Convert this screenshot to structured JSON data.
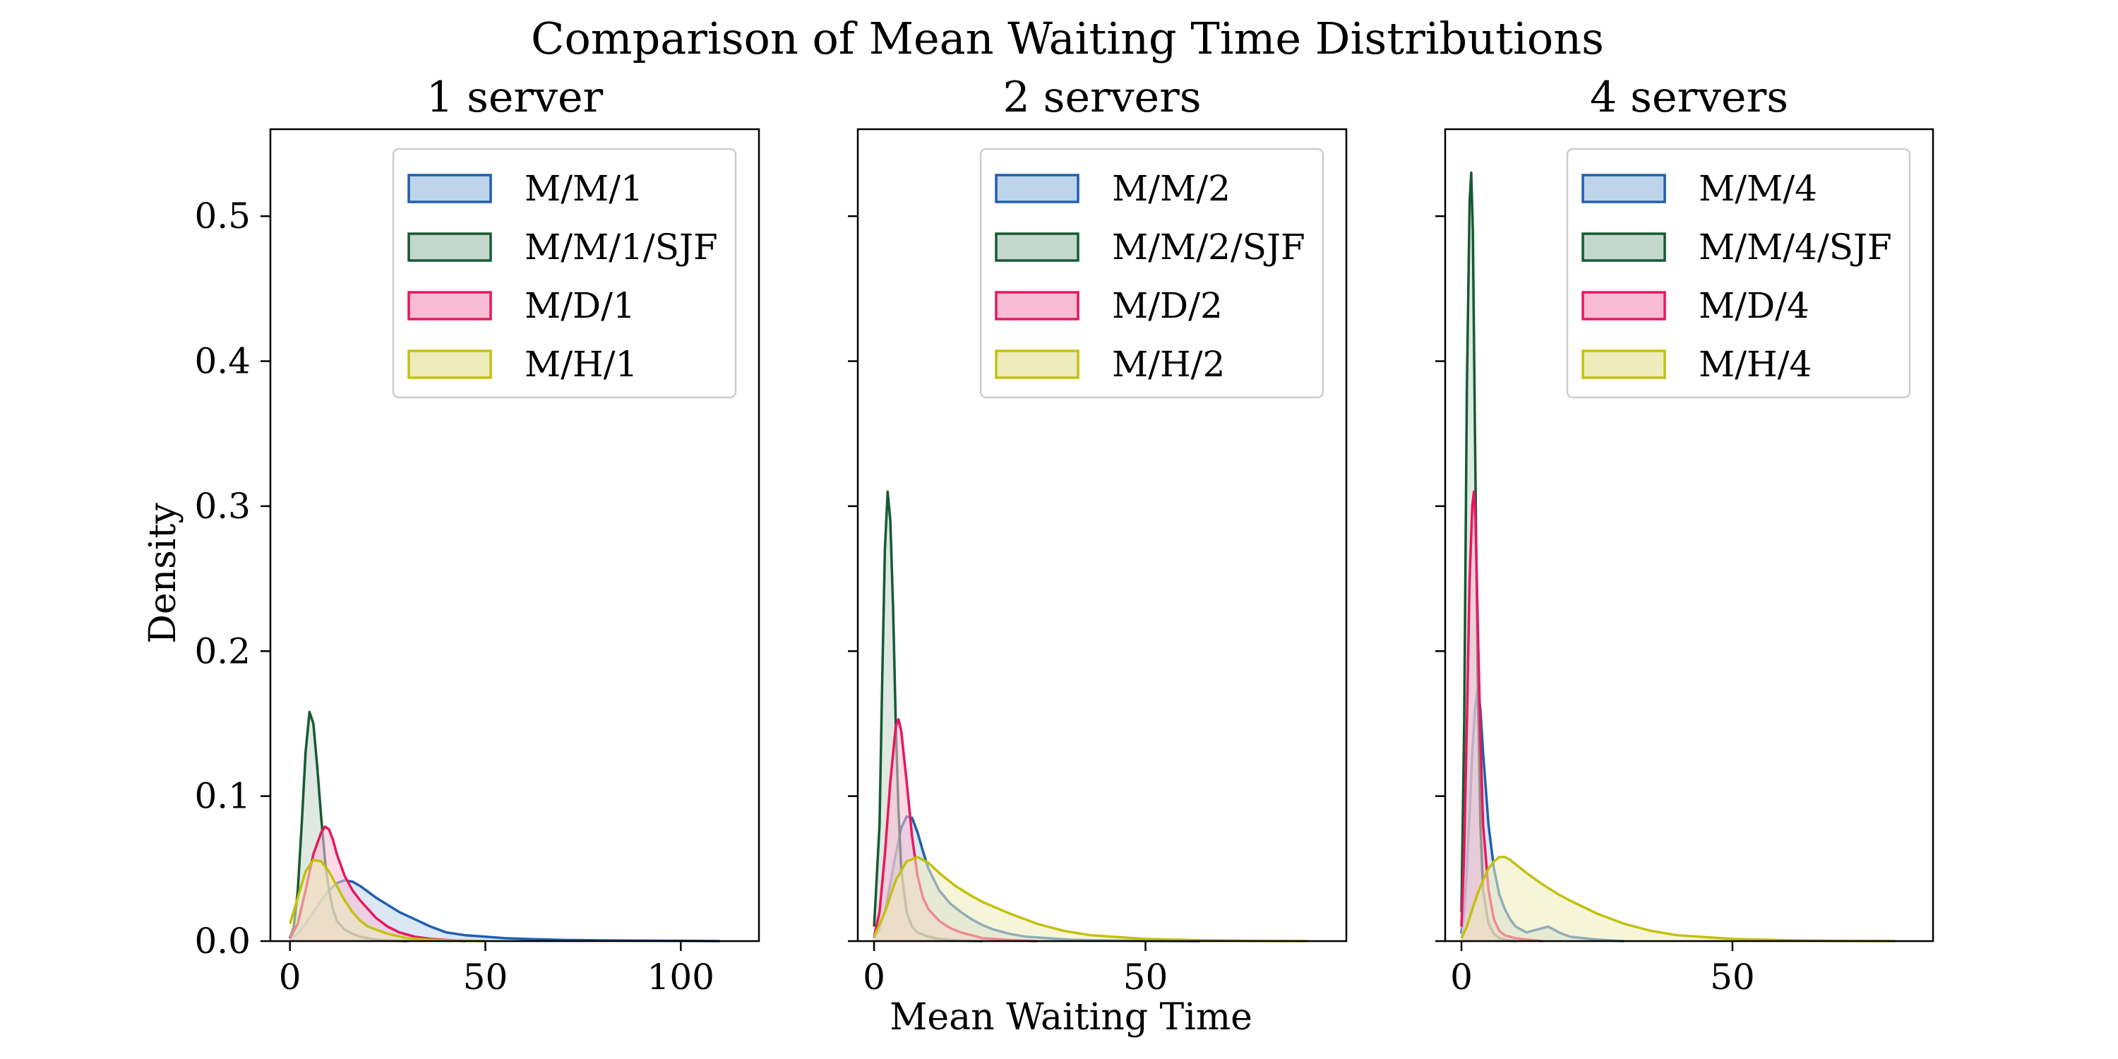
{
  "figure": {
    "title": "Comparison of Mean Waiting Time Distributions",
    "xlabel": "Mean Waiting Time",
    "ylabel": "Density"
  },
  "chart_data": [
    {
      "type": "area",
      "title": "1 server",
      "xlabel": "Mean Waiting Time",
      "ylabel": "Density",
      "xlim": [
        -5,
        120
      ],
      "ylim": [
        0,
        0.56
      ],
      "xticks": [
        0,
        50,
        100
      ],
      "yticks": [
        0.0,
        0.1,
        0.2,
        0.3,
        0.4,
        0.5
      ],
      "legend_position": "upper right",
      "grid": false,
      "series": [
        {
          "name": "M/M/1",
          "color": "#1f5fad",
          "fill": "#bdd4ea",
          "x": [
            0,
            2,
            4,
            6,
            8,
            10,
            12,
            14,
            16,
            18,
            20,
            22,
            25,
            28,
            32,
            36,
            40,
            45,
            50,
            55,
            60,
            70,
            80,
            90,
            100,
            110
          ],
          "y": [
            0.001,
            0.005,
            0.012,
            0.02,
            0.028,
            0.035,
            0.04,
            0.042,
            0.041,
            0.038,
            0.034,
            0.03,
            0.025,
            0.02,
            0.015,
            0.01,
            0.006,
            0.004,
            0.003,
            0.002,
            0.0015,
            0.0008,
            0.0005,
            0.0003,
            0.0002,
            0.0
          ]
        },
        {
          "name": "M/M/1/SJF",
          "color": "#165a32",
          "fill": "#c3d7cb",
          "x": [
            0,
            1,
            2,
            3,
            4,
            5,
            6,
            7,
            8,
            9,
            10,
            11,
            12,
            14,
            16,
            18,
            20,
            22,
            25,
            30
          ],
          "y": [
            0.002,
            0.01,
            0.035,
            0.08,
            0.13,
            0.158,
            0.15,
            0.12,
            0.085,
            0.055,
            0.035,
            0.022,
            0.014,
            0.008,
            0.005,
            0.003,
            0.002,
            0.001,
            0.0005,
            0.0
          ]
        },
        {
          "name": "M/D/1",
          "color": "#e8175d",
          "fill": "#f9bcd4",
          "x": [
            0,
            2,
            4,
            6,
            8,
            9,
            10,
            11,
            12,
            14,
            16,
            18,
            20,
            22,
            25,
            28,
            32,
            36,
            40,
            45
          ],
          "y": [
            0.002,
            0.012,
            0.035,
            0.06,
            0.075,
            0.079,
            0.077,
            0.07,
            0.06,
            0.045,
            0.035,
            0.028,
            0.022,
            0.016,
            0.01,
            0.006,
            0.003,
            0.0015,
            0.0008,
            0.0
          ]
        },
        {
          "name": "M/H/1",
          "color": "#c2c10e",
          "fill": "#efecbc",
          "x": [
            0,
            2,
            4,
            6,
            8,
            10,
            12,
            14,
            16,
            18,
            20,
            25,
            30,
            35,
            40,
            50
          ],
          "y": [
            0.012,
            0.03,
            0.048,
            0.056,
            0.055,
            0.048,
            0.038,
            0.028,
            0.02,
            0.014,
            0.01,
            0.005,
            0.002,
            0.001,
            0.0005,
            0.0
          ]
        }
      ]
    },
    {
      "type": "area",
      "title": "2 servers",
      "xlabel": "Mean Waiting Time",
      "ylabel": "Density",
      "xlim": [
        -3,
        87
      ],
      "ylim": [
        0,
        0.56
      ],
      "xticks": [
        0,
        50
      ],
      "yticks": [
        0.0,
        0.1,
        0.2,
        0.3,
        0.4,
        0.5
      ],
      "legend_position": "upper right",
      "grid": false,
      "series": [
        {
          "name": "M/M/2",
          "color": "#1f5fad",
          "fill": "#bdd4ea",
          "x": [
            0,
            1,
            2,
            3,
            4,
            5,
            6,
            7,
            8,
            9,
            10,
            12,
            14,
            16,
            18,
            20,
            22,
            25,
            28,
            32,
            36,
            40,
            50,
            60
          ],
          "y": [
            0.002,
            0.008,
            0.02,
            0.04,
            0.06,
            0.078,
            0.086,
            0.085,
            0.075,
            0.062,
            0.05,
            0.035,
            0.026,
            0.02,
            0.015,
            0.011,
            0.008,
            0.005,
            0.003,
            0.002,
            0.001,
            0.0006,
            0.0002,
            0.0
          ]
        },
        {
          "name": "M/M/2/SJF",
          "color": "#165a32",
          "fill": "#c3d7cb",
          "x": [
            0,
            1,
            1.5,
            2,
            2.5,
            3,
            3.5,
            4,
            4.5,
            5,
            6,
            7,
            8,
            10,
            12,
            15,
            20
          ],
          "y": [
            0.01,
            0.08,
            0.18,
            0.27,
            0.31,
            0.29,
            0.23,
            0.15,
            0.09,
            0.05,
            0.02,
            0.01,
            0.006,
            0.003,
            0.0015,
            0.0005,
            0.0
          ]
        },
        {
          "name": "M/D/2",
          "color": "#e8175d",
          "fill": "#f9bcd4",
          "x": [
            0,
            1,
            2,
            3,
            4,
            4.5,
            5,
            6,
            7,
            8,
            9,
            10,
            12,
            14,
            16,
            18,
            20,
            25,
            30
          ],
          "y": [
            0.003,
            0.02,
            0.06,
            0.11,
            0.148,
            0.153,
            0.145,
            0.11,
            0.072,
            0.045,
            0.03,
            0.022,
            0.014,
            0.009,
            0.006,
            0.004,
            0.002,
            0.0008,
            0.0
          ]
        },
        {
          "name": "M/H/2",
          "color": "#c2c10e",
          "fill": "#efecbc",
          "x": [
            0,
            2,
            4,
            6,
            8,
            10,
            12,
            15,
            18,
            20,
            25,
            30,
            35,
            40,
            50,
            60,
            70,
            80
          ],
          "y": [
            0.003,
            0.02,
            0.042,
            0.055,
            0.058,
            0.054,
            0.047,
            0.038,
            0.031,
            0.027,
            0.019,
            0.012,
            0.007,
            0.004,
            0.0015,
            0.0006,
            0.0002,
            0.0
          ]
        }
      ]
    },
    {
      "type": "area",
      "title": "4 servers",
      "xlabel": "Mean Waiting Time",
      "ylabel": "Density",
      "xlim": [
        -3,
        87
      ],
      "ylim": [
        0,
        0.56
      ],
      "xticks": [
        0,
        50
      ],
      "yticks": [
        0.0,
        0.1,
        0.2,
        0.3,
        0.4,
        0.5
      ],
      "legend_position": "upper right",
      "grid": false,
      "series": [
        {
          "name": "M/M/4",
          "color": "#1f5fad",
          "fill": "#bdd4ea",
          "x": [
            0,
            0.5,
            1,
            1.5,
            2,
            2.5,
            3,
            3.5,
            4,
            5,
            6,
            7,
            8,
            9,
            10,
            12,
            14,
            16,
            18,
            20,
            25,
            30
          ],
          "y": [
            0.005,
            0.02,
            0.05,
            0.09,
            0.13,
            0.16,
            0.175,
            0.16,
            0.13,
            0.08,
            0.05,
            0.032,
            0.022,
            0.015,
            0.01,
            0.006,
            0.008,
            0.01,
            0.006,
            0.003,
            0.001,
            0.0
          ]
        },
        {
          "name": "M/M/4/SJF",
          "color": "#165a32",
          "fill": "#c3d7cb",
          "x": [
            0,
            0.5,
            1,
            1.5,
            1.8,
            2.1,
            2.5,
            3,
            3.5,
            4,
            5,
            6,
            7,
            8,
            10
          ],
          "y": [
            0.02,
            0.15,
            0.38,
            0.51,
            0.53,
            0.49,
            0.35,
            0.18,
            0.08,
            0.035,
            0.012,
            0.005,
            0.002,
            0.001,
            0.0
          ]
        },
        {
          "name": "M/D/4",
          "color": "#e8175d",
          "fill": "#f9bcd4",
          "x": [
            0,
            0.5,
            1,
            1.5,
            2,
            2.3,
            2.6,
            3,
            3.5,
            4,
            5,
            6,
            7,
            8,
            10,
            12,
            15
          ],
          "y": [
            0.01,
            0.06,
            0.15,
            0.25,
            0.3,
            0.31,
            0.29,
            0.22,
            0.14,
            0.08,
            0.035,
            0.015,
            0.007,
            0.004,
            0.002,
            0.001,
            0.0
          ]
        },
        {
          "name": "M/H/4",
          "color": "#c2c10e",
          "fill": "#efecbc",
          "x": [
            0,
            1,
            2,
            3,
            4,
            5,
            6,
            7,
            8,
            9,
            10,
            12,
            15,
            18,
            20,
            25,
            30,
            35,
            40,
            50,
            60,
            70,
            80
          ],
          "y": [
            0.002,
            0.01,
            0.022,
            0.033,
            0.042,
            0.05,
            0.055,
            0.058,
            0.058,
            0.056,
            0.053,
            0.047,
            0.039,
            0.032,
            0.028,
            0.019,
            0.012,
            0.007,
            0.004,
            0.0015,
            0.0006,
            0.0002,
            0.0
          ]
        }
      ]
    }
  ]
}
